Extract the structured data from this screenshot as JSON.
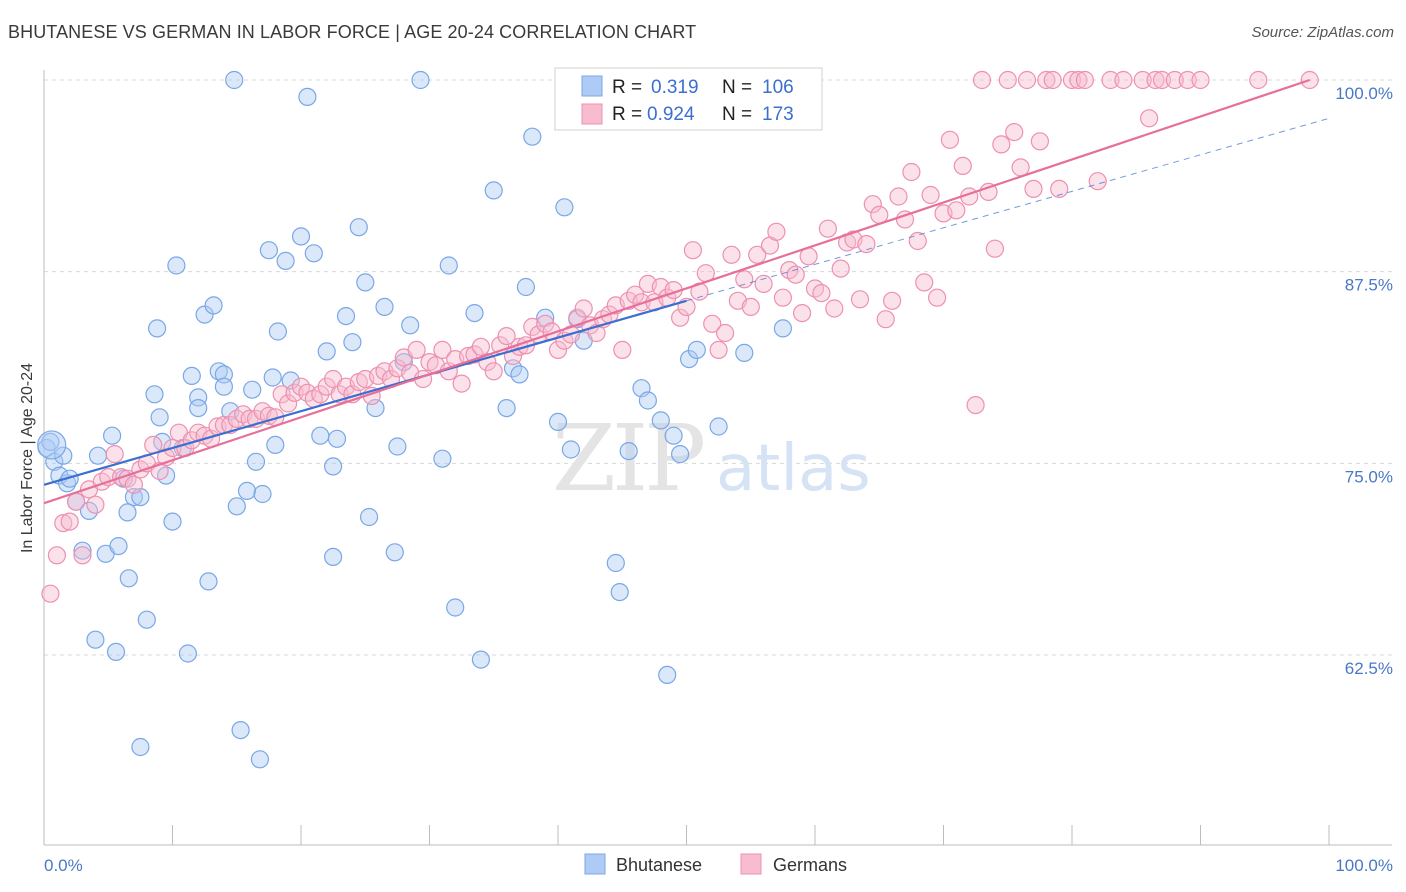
{
  "title": "BHUTANESE VS GERMAN IN LABOR FORCE | AGE 20-24 CORRELATION CHART",
  "source": "Source: ZipAtlas.com",
  "watermark": {
    "zip": "ZIP",
    "atlas": "atlas"
  },
  "legend": {
    "r_label": "R =",
    "n_label": "N =",
    "rows": [
      {
        "r": "0.319",
        "n": "106"
      },
      {
        "r": "0.924",
        "n": "173"
      }
    ]
  },
  "bottom_legend": [
    "Bhutanese",
    "Germans"
  ],
  "colors": {
    "blue_fill": "#aecbf5",
    "blue_stroke": "#7aa7e6",
    "blue_line": "#3a6fd0",
    "pink_fill": "#f7bcd0",
    "pink_stroke": "#ee90b0",
    "pink_line": "#e6709a",
    "grid": "#d8d8d8",
    "tick_text": "#4a78c4"
  },
  "chart_data": {
    "type": "scatter",
    "title": "BHUTANESE VS GERMAN IN LABOR FORCE | AGE 20-24 CORRELATION CHART",
    "xlabel": "",
    "ylabel": "In Labor Force | Age 20-24",
    "xlim": [
      0,
      100
    ],
    "ylim": [
      50,
      101
    ],
    "x_tick_labels": [
      "0.0%",
      "100.0%"
    ],
    "y_ticks": [
      62.5,
      75.0,
      87.5,
      100.0
    ],
    "y_tick_labels": [
      "62.5%",
      "75.0%",
      "87.5%",
      "100.0%"
    ],
    "grid": true,
    "legend_position": "top-center",
    "series": [
      {
        "name": "Bhutanese",
        "r": 0.319,
        "n": 106,
        "trend": {
          "x": [
            0,
            50
          ],
          "y": [
            73.6,
            85.6
          ]
        },
        "trend_extended": {
          "x": [
            50,
            100
          ],
          "y": [
            85.6,
            97.5
          ]
        },
        "points": [
          [
            0.2,
            76.0
          ],
          [
            0.5,
            76.4
          ],
          [
            0.8,
            75.1
          ],
          [
            1.2,
            74.2
          ],
          [
            1.5,
            75.5
          ],
          [
            1.8,
            73.7
          ],
          [
            2.0,
            74.0
          ],
          [
            2.5,
            72.5
          ],
          [
            3.0,
            69.3
          ],
          [
            3.5,
            71.9
          ],
          [
            4.2,
            75.5
          ],
          [
            4.8,
            69.1
          ],
          [
            5.3,
            76.8
          ],
          [
            5.8,
            69.6
          ],
          [
            6.2,
            74.0
          ],
          [
            6.6,
            67.5
          ],
          [
            7.0,
            72.8
          ],
          [
            7.5,
            72.8
          ],
          [
            8.0,
            64.8
          ],
          [
            8.6,
            79.5
          ],
          [
            8.8,
            83.8
          ],
          [
            9.0,
            78.0
          ],
          [
            9.5,
            74.2
          ],
          [
            10.0,
            71.2
          ],
          [
            10.3,
            87.9
          ],
          [
            10.8,
            76.0
          ],
          [
            11.2,
            62.6
          ],
          [
            11.5,
            80.7
          ],
          [
            12.0,
            79.3
          ],
          [
            12.5,
            84.7
          ],
          [
            12.8,
            67.3
          ],
          [
            13.2,
            85.3
          ],
          [
            13.6,
            81.0
          ],
          [
            14.0,
            80.8
          ],
          [
            14.5,
            78.4
          ],
          [
            15.0,
            72.2
          ],
          [
            15.3,
            57.6
          ],
          [
            15.8,
            73.2
          ],
          [
            16.2,
            79.8
          ],
          [
            16.5,
            75.1
          ],
          [
            17.0,
            73.0
          ],
          [
            17.5,
            88.9
          ],
          [
            17.8,
            80.6
          ],
          [
            18.2,
            83.6
          ],
          [
            18.8,
            88.2
          ],
          [
            19.2,
            80.4
          ],
          [
            20.0,
            89.8
          ],
          [
            20.5,
            98.9
          ],
          [
            21.0,
            88.7
          ],
          [
            21.5,
            76.8
          ],
          [
            22.0,
            82.3
          ],
          [
            22.5,
            74.8
          ],
          [
            22.8,
            76.6
          ],
          [
            23.5,
            84.6
          ],
          [
            24.0,
            82.9
          ],
          [
            24.5,
            90.4
          ],
          [
            25.0,
            86.8
          ],
          [
            25.3,
            71.5
          ],
          [
            25.8,
            78.6
          ],
          [
            26.5,
            85.2
          ],
          [
            27.3,
            69.2
          ],
          [
            27.5,
            76.1
          ],
          [
            28.0,
            81.6
          ],
          [
            28.5,
            84.0
          ],
          [
            29.3,
            100.0
          ],
          [
            31.0,
            75.3
          ],
          [
            31.5,
            87.9
          ],
          [
            32.0,
            65.6
          ],
          [
            33.5,
            84.8
          ],
          [
            34.0,
            62.2
          ],
          [
            35.0,
            92.8
          ],
          [
            36.0,
            78.6
          ],
          [
            36.5,
            81.2
          ],
          [
            37.0,
            80.8
          ],
          [
            37.5,
            86.5
          ],
          [
            38.0,
            96.3
          ],
          [
            39.0,
            84.5
          ],
          [
            40.0,
            77.7
          ],
          [
            40.5,
            91.7
          ],
          [
            41.0,
            75.9
          ],
          [
            41.5,
            84.4
          ],
          [
            42.0,
            83.0
          ],
          [
            44.5,
            68.5
          ],
          [
            44.8,
            66.6
          ],
          [
            45.5,
            75.8
          ],
          [
            46.5,
            79.9
          ],
          [
            47.0,
            79.1
          ],
          [
            47.5,
            100.0
          ],
          [
            48.0,
            77.8
          ],
          [
            48.5,
            61.2
          ],
          [
            49.0,
            76.8
          ],
          [
            49.5,
            75.6
          ],
          [
            50.2,
            81.8
          ],
          [
            50.8,
            82.4
          ],
          [
            52.5,
            77.4
          ],
          [
            54.5,
            82.2
          ],
          [
            57.5,
            83.8
          ],
          [
            6.5,
            71.8
          ],
          [
            12.0,
            78.6
          ],
          [
            14.0,
            80.0
          ],
          [
            18.0,
            76.2
          ],
          [
            22.5,
            68.9
          ],
          [
            7.5,
            56.5
          ],
          [
            16.8,
            55.7
          ],
          [
            14.8,
            100.0
          ],
          [
            9.2,
            76.4
          ],
          [
            4.0,
            63.5
          ],
          [
            5.6,
            62.7
          ]
        ]
      },
      {
        "name": "Germans",
        "r": 0.924,
        "n": 173,
        "trend": {
          "x": [
            0,
            98.5
          ],
          "y": [
            72.4,
            100.0
          ]
        },
        "points": [
          [
            0.5,
            66.5
          ],
          [
            1.0,
            69.0
          ],
          [
            1.5,
            71.1
          ],
          [
            2.0,
            71.2
          ],
          [
            2.5,
            72.5
          ],
          [
            3.0,
            69.0
          ],
          [
            3.5,
            73.3
          ],
          [
            4.0,
            72.3
          ],
          [
            4.5,
            73.8
          ],
          [
            5.0,
            74.1
          ],
          [
            5.5,
            75.6
          ],
          [
            6.0,
            74.1
          ],
          [
            6.5,
            74.0
          ],
          [
            7.0,
            73.6
          ],
          [
            7.5,
            74.6
          ],
          [
            8.0,
            75.0
          ],
          [
            8.5,
            76.2
          ],
          [
            9.0,
            74.5
          ],
          [
            9.5,
            75.4
          ],
          [
            10.0,
            76.0
          ],
          [
            10.5,
            77.0
          ],
          [
            11.0,
            76.0
          ],
          [
            11.5,
            76.5
          ],
          [
            12.0,
            77.0
          ],
          [
            12.5,
            76.8
          ],
          [
            13.0,
            76.6
          ],
          [
            13.5,
            77.4
          ],
          [
            14.0,
            77.5
          ],
          [
            14.5,
            77.5
          ],
          [
            15.0,
            77.9
          ],
          [
            15.5,
            78.2
          ],
          [
            16.0,
            77.9
          ],
          [
            16.5,
            77.9
          ],
          [
            17.0,
            78.4
          ],
          [
            17.5,
            78.1
          ],
          [
            18.0,
            78.0
          ],
          [
            18.5,
            79.5
          ],
          [
            19.0,
            78.9
          ],
          [
            19.5,
            79.6
          ],
          [
            20.0,
            80.0
          ],
          [
            20.5,
            79.6
          ],
          [
            21.0,
            79.2
          ],
          [
            21.5,
            79.5
          ],
          [
            22.0,
            80.0
          ],
          [
            22.5,
            80.5
          ],
          [
            23.0,
            79.5
          ],
          [
            23.5,
            80.0
          ],
          [
            24.0,
            79.5
          ],
          [
            24.5,
            80.3
          ],
          [
            25.0,
            80.5
          ],
          [
            25.5,
            79.4
          ],
          [
            26.0,
            80.7
          ],
          [
            26.5,
            81.0
          ],
          [
            27.0,
            80.5
          ],
          [
            27.5,
            81.2
          ],
          [
            28.0,
            81.9
          ],
          [
            28.5,
            80.9
          ],
          [
            29.0,
            82.4
          ],
          [
            29.5,
            80.5
          ],
          [
            30.0,
            81.6
          ],
          [
            30.5,
            81.4
          ],
          [
            31.0,
            82.4
          ],
          [
            31.5,
            81.0
          ],
          [
            32.0,
            81.8
          ],
          [
            32.5,
            80.2
          ],
          [
            33.0,
            82.0
          ],
          [
            33.5,
            82.1
          ],
          [
            34.0,
            82.6
          ],
          [
            34.5,
            81.6
          ],
          [
            35.0,
            81.0
          ],
          [
            35.5,
            82.7
          ],
          [
            36.0,
            83.3
          ],
          [
            36.5,
            82.0
          ],
          [
            37.0,
            82.6
          ],
          [
            37.5,
            82.7
          ],
          [
            38.0,
            83.9
          ],
          [
            38.5,
            83.4
          ],
          [
            39.0,
            84.1
          ],
          [
            39.5,
            83.6
          ],
          [
            40.0,
            82.4
          ],
          [
            40.5,
            83.0
          ],
          [
            41.0,
            83.4
          ],
          [
            41.5,
            84.5
          ],
          [
            42.0,
            85.1
          ],
          [
            42.5,
            84.0
          ],
          [
            43.0,
            83.5
          ],
          [
            43.5,
            84.4
          ],
          [
            44.0,
            84.7
          ],
          [
            44.5,
            85.3
          ],
          [
            45.0,
            82.4
          ],
          [
            45.5,
            85.6
          ],
          [
            46.0,
            86.0
          ],
          [
            46.5,
            85.5
          ],
          [
            47.0,
            86.7
          ],
          [
            47.5,
            85.5
          ],
          [
            48.0,
            86.5
          ],
          [
            48.5,
            85.8
          ],
          [
            49.0,
            86.3
          ],
          [
            49.5,
            84.5
          ],
          [
            50.0,
            85.2
          ],
          [
            50.5,
            88.9
          ],
          [
            51.0,
            86.2
          ],
          [
            51.5,
            87.4
          ],
          [
            52.0,
            84.1
          ],
          [
            52.5,
            82.4
          ],
          [
            53.0,
            83.5
          ],
          [
            53.5,
            88.6
          ],
          [
            54.0,
            85.6
          ],
          [
            54.5,
            87.0
          ],
          [
            55.0,
            85.2
          ],
          [
            55.5,
            88.6
          ],
          [
            56.0,
            86.7
          ],
          [
            56.5,
            89.2
          ],
          [
            57.0,
            90.1
          ],
          [
            57.5,
            85.8
          ],
          [
            58.0,
            87.6
          ],
          [
            58.5,
            87.3
          ],
          [
            59.0,
            84.8
          ],
          [
            59.5,
            88.5
          ],
          [
            60.0,
            86.4
          ],
          [
            60.5,
            86.1
          ],
          [
            61.0,
            90.3
          ],
          [
            61.5,
            85.1
          ],
          [
            62.0,
            87.7
          ],
          [
            62.5,
            89.4
          ],
          [
            63.0,
            89.6
          ],
          [
            63.5,
            85.7
          ],
          [
            64.0,
            89.3
          ],
          [
            64.5,
            91.9
          ],
          [
            65.0,
            91.2
          ],
          [
            65.5,
            84.4
          ],
          [
            66.0,
            85.6
          ],
          [
            66.5,
            92.4
          ],
          [
            67.0,
            90.9
          ],
          [
            67.5,
            94.0
          ],
          [
            68.0,
            89.5
          ],
          [
            68.5,
            86.8
          ],
          [
            69.0,
            92.5
          ],
          [
            69.5,
            85.8
          ],
          [
            70.0,
            91.3
          ],
          [
            70.5,
            96.1
          ],
          [
            71.0,
            91.5
          ],
          [
            71.5,
            94.4
          ],
          [
            72.0,
            92.4
          ],
          [
            72.5,
            78.8
          ],
          [
            73.0,
            100.0
          ],
          [
            73.5,
            92.7
          ],
          [
            74.0,
            89.0
          ],
          [
            74.5,
            95.8
          ],
          [
            75.0,
            100.0
          ],
          [
            75.5,
            96.6
          ],
          [
            76.0,
            94.3
          ],
          [
            76.5,
            100.0
          ],
          [
            77.0,
            92.9
          ],
          [
            77.5,
            96.0
          ],
          [
            78.0,
            100.0
          ],
          [
            78.5,
            100.0
          ],
          [
            79.0,
            92.9
          ],
          [
            80.0,
            100.0
          ],
          [
            80.5,
            100.0
          ],
          [
            81.0,
            100.0
          ],
          [
            82.0,
            93.4
          ],
          [
            83.0,
            100.0
          ],
          [
            84.0,
            100.0
          ],
          [
            85.5,
            100.0
          ],
          [
            86.0,
            97.5
          ],
          [
            86.5,
            100.0
          ],
          [
            87.0,
            100.0
          ],
          [
            88.0,
            100.0
          ],
          [
            89.0,
            100.0
          ],
          [
            90.0,
            100.0
          ],
          [
            94.5,
            100.0
          ],
          [
            98.5,
            100.0
          ]
        ]
      }
    ]
  }
}
